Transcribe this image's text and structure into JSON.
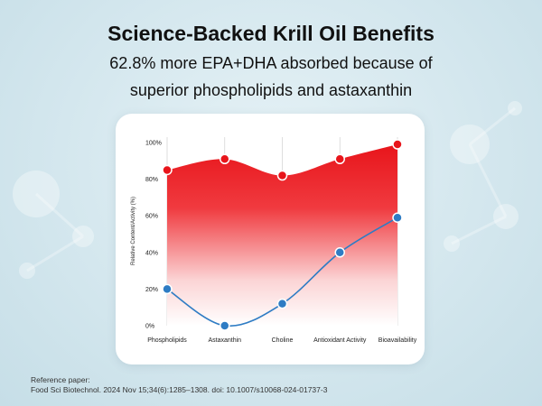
{
  "header": {
    "title": "Science-Backed Krill Oil Benefits",
    "subtitle_line1": "62.8% more EPA+DHA absorbed because of",
    "subtitle_line2": "superior phospholipids and astaxanthin"
  },
  "chart_data": {
    "type": "area",
    "categories": [
      "Phospholipids",
      "Astaxanthin",
      "Choline",
      "Antioxidant Activity",
      "Bioavailability"
    ],
    "series": [
      {
        "values": [
          85,
          91,
          82,
          91,
          99
        ],
        "color": "#e8151b",
        "fill": "gradient-red"
      },
      {
        "values": [
          20,
          0,
          12,
          40,
          59
        ],
        "color": "#2e7cc4"
      }
    ],
    "title": "",
    "xlabel": "",
    "ylabel": "Relative Content/Activity (%)",
    "ylim": [
      0,
      100
    ],
    "yticks": [
      "0%",
      "20%",
      "40%",
      "60%",
      "80%",
      "100%"
    ],
    "grid": "vertical",
    "smooth": true
  },
  "footer": {
    "reference_label": "Reference paper:",
    "reference_text": "Food Sci Biotechnol. 2024 Nov 15;34(6):1285–1308. doi: 10.1007/s10068-024-01737-3"
  },
  "colors": {
    "background": "#d4e7ee",
    "card": "#ffffff",
    "red": "#e8151b",
    "blue": "#2e7cc4",
    "grid": "#d6d6d6"
  }
}
